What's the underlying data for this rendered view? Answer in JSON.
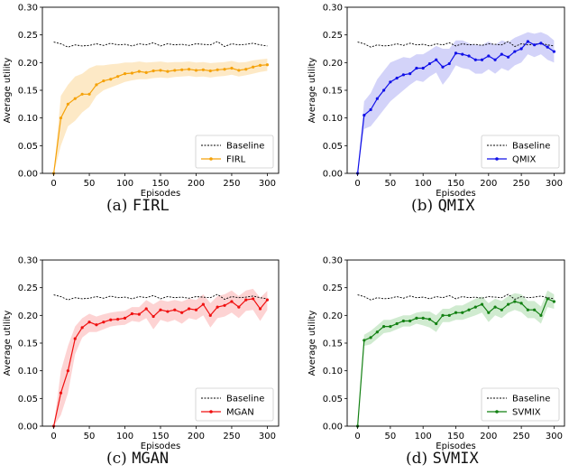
{
  "captions": [
    {
      "prefix": "(a)",
      "name": "FIRL"
    },
    {
      "prefix": "(b)",
      "name": "QMIX"
    },
    {
      "prefix": "(c)",
      "name": "MGAN"
    },
    {
      "prefix": "(d)",
      "name": "SVMIX"
    }
  ],
  "chart_data": [
    {
      "type": "line",
      "xlabel": "Episodes",
      "ylabel": "Average utility",
      "xlim": [
        0,
        300
      ],
      "ylim": [
        0,
        0.3
      ],
      "xticks": [
        0,
        50,
        100,
        150,
        200,
        250,
        300
      ],
      "yticks": [
        "0.00",
        "0.05",
        "0.10",
        "0.15",
        "0.20",
        "0.25",
        "0.30"
      ],
      "legend": "lower-right",
      "grid": false,
      "x": [
        0,
        10,
        20,
        30,
        40,
        50,
        60,
        70,
        80,
        90,
        100,
        110,
        120,
        130,
        140,
        150,
        160,
        170,
        180,
        190,
        200,
        210,
        220,
        230,
        240,
        250,
        260,
        270,
        280,
        290,
        300
      ],
      "series": [
        {
          "name": "Baseline",
          "color": "#000000",
          "dashed": true,
          "values": [
            0.237,
            0.234,
            0.228,
            0.232,
            0.23,
            0.231,
            0.234,
            0.231,
            0.235,
            0.232,
            0.233,
            0.23,
            0.234,
            0.232,
            0.236,
            0.23,
            0.234,
            0.232,
            0.233,
            0.231,
            0.234,
            0.233,
            0.232,
            0.238,
            0.229,
            0.234,
            0.232,
            0.233,
            0.235,
            0.232,
            0.23
          ]
        },
        {
          "name": "FIRL",
          "color": "#f5a20a",
          "band": "#fde3b8",
          "values": [
            0.0,
            0.1,
            0.125,
            0.135,
            0.143,
            0.143,
            0.16,
            0.167,
            0.17,
            0.175,
            0.18,
            0.181,
            0.184,
            0.182,
            0.185,
            0.186,
            0.184,
            0.186,
            0.187,
            0.188,
            0.186,
            0.187,
            0.185,
            0.187,
            0.188,
            0.19,
            0.186,
            0.188,
            0.192,
            0.195,
            0.196
          ],
          "lower": [
            0.0,
            0.05,
            0.085,
            0.095,
            0.11,
            0.12,
            0.14,
            0.15,
            0.155,
            0.16,
            0.165,
            0.168,
            0.17,
            0.17,
            0.172,
            0.173,
            0.172,
            0.174,
            0.175,
            0.176,
            0.174,
            0.175,
            0.173,
            0.175,
            0.176,
            0.178,
            0.175,
            0.177,
            0.18,
            0.183,
            0.185
          ],
          "upper": [
            0.0,
            0.14,
            0.16,
            0.175,
            0.18,
            0.19,
            0.195,
            0.195,
            0.197,
            0.198,
            0.2,
            0.2,
            0.202,
            0.2,
            0.201,
            0.202,
            0.2,
            0.201,
            0.201,
            0.202,
            0.2,
            0.201,
            0.199,
            0.2,
            0.201,
            0.203,
            0.2,
            0.201,
            0.204,
            0.206,
            0.207
          ]
        },
        {
          "name": "QMIX",
          "color": "#1010e8",
          "band": "#c8c8f8",
          "values": [
            0.0,
            0.105,
            0.115,
            0.135,
            0.15,
            0.165,
            0.172,
            0.178,
            0.18,
            0.19,
            0.19,
            0.198,
            0.205,
            0.192,
            0.198,
            0.217,
            0.215,
            0.212,
            0.205,
            0.205,
            0.212,
            0.205,
            0.215,
            0.21,
            0.22,
            0.225,
            0.238,
            0.232,
            0.235,
            0.228,
            0.22
          ],
          "lower": [
            0.0,
            0.08,
            0.085,
            0.1,
            0.115,
            0.13,
            0.14,
            0.15,
            0.16,
            0.168,
            0.165,
            0.175,
            0.182,
            0.16,
            0.175,
            0.195,
            0.19,
            0.188,
            0.18,
            0.18,
            0.188,
            0.18,
            0.19,
            0.185,
            0.195,
            0.2,
            0.215,
            0.21,
            0.215,
            0.205,
            0.2
          ],
          "upper": [
            0.0,
            0.13,
            0.145,
            0.17,
            0.185,
            0.2,
            0.205,
            0.21,
            0.208,
            0.215,
            0.215,
            0.222,
            0.23,
            0.225,
            0.225,
            0.24,
            0.24,
            0.235,
            0.232,
            0.232,
            0.238,
            0.232,
            0.24,
            0.237,
            0.245,
            0.25,
            0.255,
            0.252,
            0.255,
            0.25,
            0.24
          ]
        },
        {
          "name": "MGAN",
          "color": "#f01010",
          "band": "#fcc8c8",
          "values": [
            0.0,
            0.06,
            0.1,
            0.158,
            0.178,
            0.188,
            0.183,
            0.188,
            0.192,
            0.193,
            0.195,
            0.203,
            0.202,
            0.212,
            0.198,
            0.21,
            0.207,
            0.21,
            0.205,
            0.212,
            0.21,
            0.22,
            0.2,
            0.215,
            0.218,
            0.225,
            0.215,
            0.228,
            0.23,
            0.212,
            0.228
          ],
          "lower": [
            0.0,
            0.02,
            0.06,
            0.13,
            0.16,
            0.17,
            0.17,
            0.175,
            0.18,
            0.182,
            0.183,
            0.19,
            0.188,
            0.195,
            0.175,
            0.192,
            0.188,
            0.192,
            0.185,
            0.195,
            0.192,
            0.2,
            0.178,
            0.195,
            0.198,
            0.205,
            0.195,
            0.208,
            0.21,
            0.19,
            0.21
          ],
          "upper": [
            0.0,
            0.1,
            0.145,
            0.18,
            0.195,
            0.203,
            0.198,
            0.202,
            0.205,
            0.207,
            0.208,
            0.215,
            0.215,
            0.228,
            0.22,
            0.228,
            0.225,
            0.228,
            0.225,
            0.23,
            0.228,
            0.238,
            0.222,
            0.235,
            0.238,
            0.245,
            0.235,
            0.245,
            0.248,
            0.232,
            0.244
          ]
        },
        {
          "name": "SVMIX",
          "color": "#128012",
          "band": "#c4e6c4",
          "values": [
            0.0,
            0.155,
            0.16,
            0.17,
            0.18,
            0.18,
            0.185,
            0.19,
            0.19,
            0.195,
            0.195,
            0.193,
            0.185,
            0.2,
            0.2,
            0.205,
            0.205,
            0.21,
            0.215,
            0.22,
            0.205,
            0.215,
            0.21,
            0.22,
            0.225,
            0.222,
            0.21,
            0.21,
            0.2,
            0.23,
            0.225
          ],
          "lower": [
            0.0,
            0.145,
            0.148,
            0.158,
            0.168,
            0.17,
            0.175,
            0.18,
            0.18,
            0.185,
            0.182,
            0.178,
            0.17,
            0.188,
            0.188,
            0.192,
            0.192,
            0.196,
            0.2,
            0.205,
            0.188,
            0.2,
            0.195,
            0.205,
            0.21,
            0.206,
            0.195,
            0.195,
            0.185,
            0.215,
            0.212
          ],
          "upper": [
            0.0,
            0.165,
            0.172,
            0.182,
            0.192,
            0.192,
            0.196,
            0.2,
            0.2,
            0.205,
            0.207,
            0.207,
            0.2,
            0.212,
            0.212,
            0.218,
            0.218,
            0.224,
            0.23,
            0.234,
            0.222,
            0.23,
            0.226,
            0.235,
            0.24,
            0.238,
            0.226,
            0.226,
            0.216,
            0.245,
            0.238
          ]
        }
      ]
    }
  ]
}
